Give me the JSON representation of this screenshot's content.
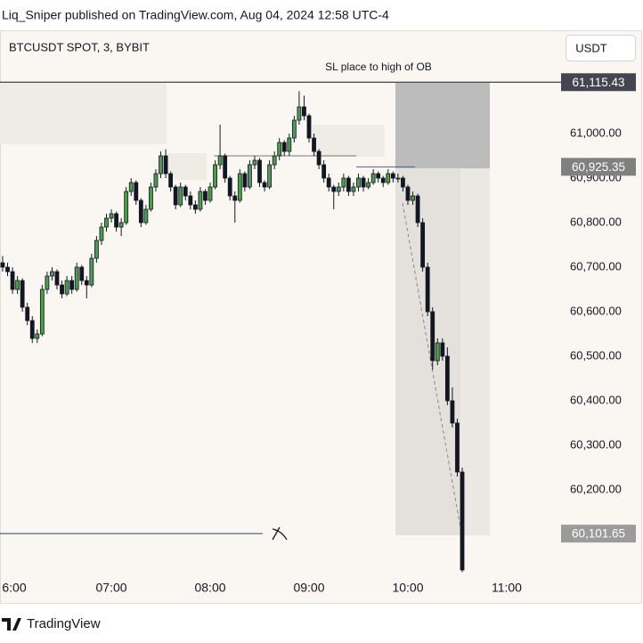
{
  "header": {
    "published": "Liq_Sniper published on TradingView.com, Aug 04, 2024 12:58 UTC-4"
  },
  "footer": {
    "brand": "TradingView"
  },
  "currency_button": "USDT",
  "chart_data": {
    "type": "candlestick",
    "title": "BTCUSDT SPOT, 3, BYBIT",
    "annotation": "SL place to high of OB",
    "up_color": "#4e9a4e",
    "down_color": "#131722",
    "xlim": [
      352.4,
      693
    ],
    "xticks": [
      {
        "value": 360,
        "label": "6:00"
      },
      {
        "value": 420,
        "label": "07:00"
      },
      {
        "value": 480,
        "label": "08:00"
      },
      {
        "value": 540,
        "label": "09:00"
      },
      {
        "value": 600,
        "label": "10:00"
      },
      {
        "value": 660,
        "label": "11:00"
      }
    ],
    "ylim": [
      60000,
      61230
    ],
    "yticks": [
      {
        "value": 60200,
        "label": "60,200.00"
      },
      {
        "value": 60300,
        "label": "60,300.00"
      },
      {
        "value": 60400,
        "label": "60,400.00"
      },
      {
        "value": 60500,
        "label": "60,500.00"
      },
      {
        "value": 60600,
        "label": "60,600.00"
      },
      {
        "value": 60700,
        "label": "60,700.00"
      },
      {
        "value": 60800,
        "label": "60,800.00"
      },
      {
        "value": 60900,
        "label": "60,900.00"
      },
      {
        "value": 61000,
        "label": "61,000.00"
      }
    ],
    "grid": false,
    "price_lines": [
      {
        "value": 61115.43,
        "label": "61,115.43",
        "color": "#131722",
        "box_color": "#434651"
      },
      {
        "value": 60925.35,
        "label": "60,925.35",
        "color": "#2962ff",
        "box_color": "#808080"
      },
      {
        "value": 60101.65,
        "label": "60,101.65",
        "color": "#1c3f8c",
        "box_color": "#9b9b9b"
      }
    ],
    "x": [
      354,
      357,
      360,
      363,
      366,
      369,
      372,
      375,
      378,
      381,
      384,
      387,
      390,
      393,
      396,
      399,
      402,
      405,
      408,
      411,
      414,
      417,
      420,
      423,
      426,
      429,
      432,
      435,
      438,
      441,
      444,
      447,
      450,
      453,
      456,
      459,
      462,
      465,
      468,
      471,
      474,
      477,
      480,
      483,
      486,
      489,
      492,
      495,
      498,
      501,
      504,
      507,
      510,
      513,
      516,
      519,
      522,
      525,
      528,
      531,
      534,
      537,
      540,
      543,
      546,
      549,
      552,
      555,
      558,
      561,
      564,
      567,
      570,
      573,
      576,
      579,
      582,
      585,
      588,
      591,
      594,
      597,
      600,
      603,
      606,
      609,
      612,
      615,
      618,
      621,
      624,
      627,
      630,
      633
    ],
    "series": [
      {
        "name": "BTCUSDT",
        "values": [
          [
            60710,
            60725,
            60690,
            60700
          ],
          [
            60700,
            60710,
            60680,
            60690
          ],
          [
            60690,
            60700,
            60640,
            60650
          ],
          [
            60650,
            60680,
            60640,
            60670
          ],
          [
            60670,
            60675,
            60600,
            60610
          ],
          [
            60610,
            60620,
            60570,
            60580
          ],
          [
            60580,
            60590,
            60530,
            60540
          ],
          [
            60540,
            60560,
            60530,
            60550
          ],
          [
            60550,
            60660,
            60545,
            60650
          ],
          [
            60650,
            60690,
            60640,
            60680
          ],
          [
            60680,
            60700,
            60670,
            60690
          ],
          [
            60690,
            60695,
            60650,
            60660
          ],
          [
            60660,
            60670,
            60630,
            60640
          ],
          [
            60640,
            60680,
            60635,
            60670
          ],
          [
            60670,
            60680,
            60640,
            60650
          ],
          [
            60650,
            60710,
            60645,
            60700
          ],
          [
            60700,
            60705,
            60660,
            60670
          ],
          [
            60670,
            60680,
            60630,
            60660
          ],
          [
            60660,
            60730,
            60655,
            60720
          ],
          [
            60720,
            60770,
            60710,
            60760
          ],
          [
            60760,
            60800,
            60750,
            60790
          ],
          [
            60790,
            60820,
            60780,
            60810
          ],
          [
            60810,
            60830,
            60800,
            60820
          ],
          [
            60820,
            60825,
            60780,
            60790
          ],
          [
            60790,
            60810,
            60770,
            60800
          ],
          [
            60800,
            60880,
            60795,
            60870
          ],
          [
            60870,
            60900,
            60860,
            60890
          ],
          [
            60890,
            60895,
            60840,
            60850
          ],
          [
            60850,
            60855,
            60790,
            60800
          ],
          [
            60800,
            60840,
            60795,
            60830
          ],
          [
            60830,
            60890,
            60825,
            60880
          ],
          [
            60880,
            60920,
            60870,
            60910
          ],
          [
            60910,
            60960,
            60900,
            60950
          ],
          [
            60950,
            60965,
            60900,
            60910
          ],
          [
            60910,
            60915,
            60870,
            60880
          ],
          [
            60880,
            60885,
            60830,
            60840
          ],
          [
            60840,
            60890,
            60835,
            60880
          ],
          [
            60880,
            60885,
            60850,
            60860
          ],
          [
            60860,
            60870,
            60830,
            60840
          ],
          [
            60840,
            60850,
            60820,
            60830
          ],
          [
            60830,
            60880,
            60825,
            60870
          ],
          [
            60870,
            60875,
            60840,
            60850
          ],
          [
            60850,
            60890,
            60845,
            60880
          ],
          [
            60880,
            60940,
            60875,
            60930
          ],
          [
            60930,
            61020,
            60920,
            60950
          ],
          [
            60950,
            60955,
            60890,
            60900
          ],
          [
            60900,
            60905,
            60850,
            60860
          ],
          [
            60860,
            60870,
            60800,
            60850
          ],
          [
            60850,
            60920,
            60845,
            60910
          ],
          [
            60910,
            60915,
            60870,
            60880
          ],
          [
            60880,
            60940,
            60875,
            60930
          ],
          [
            60930,
            60950,
            60920,
            60940
          ],
          [
            60940,
            60945,
            60880,
            60890
          ],
          [
            60890,
            60895,
            60870,
            60880
          ],
          [
            60880,
            60940,
            60875,
            60930
          ],
          [
            60930,
            60960,
            60920,
            60950
          ],
          [
            60950,
            60990,
            60940,
            60980
          ],
          [
            60980,
            60985,
            60950,
            60960
          ],
          [
            60960,
            61000,
            60950,
            60990
          ],
          [
            60990,
            61040,
            60980,
            61030
          ],
          [
            61030,
            61095,
            61020,
            61060
          ],
          [
            61060,
            61085,
            61030,
            61040
          ],
          [
            61040,
            61045,
            60980,
            60990
          ],
          [
            60990,
            61000,
            60950,
            60960
          ],
          [
            60960,
            60965,
            60920,
            60930
          ],
          [
            60930,
            60940,
            60890,
            60900
          ],
          [
            60900,
            60910,
            60870,
            60880
          ],
          [
            60880,
            60885,
            60830,
            60870
          ],
          [
            60870,
            60890,
            60860,
            60880
          ],
          [
            60880,
            60910,
            60870,
            60900
          ],
          [
            60900,
            60905,
            60860,
            60870
          ],
          [
            60870,
            60890,
            60860,
            60880
          ],
          [
            60880,
            60910,
            60870,
            60900
          ],
          [
            60900,
            60905,
            60870,
            60880
          ],
          [
            60880,
            60900,
            60875,
            60890
          ],
          [
            60890,
            60920,
            60885,
            60910
          ],
          [
            60910,
            60915,
            60890,
            60900
          ],
          [
            60900,
            60905,
            60880,
            60890
          ],
          [
            60890,
            60920,
            60885,
            60910
          ],
          [
            60910,
            60915,
            60890,
            60900
          ],
          [
            60900,
            60910,
            60890,
            60900
          ],
          [
            60900,
            60905,
            60870,
            60880
          ],
          [
            60880,
            60885,
            60840,
            60850
          ],
          [
            60850,
            60870,
            60840,
            60860
          ],
          [
            60860,
            60865,
            60790,
            60800
          ],
          [
            60800,
            60810,
            60690,
            60700
          ],
          [
            60700,
            60710,
            60590,
            60600
          ],
          [
            60600,
            60610,
            60470,
            60490
          ],
          [
            60490,
            60540,
            60480,
            60530
          ],
          [
            60530,
            60540,
            60490,
            60500
          ],
          [
            60500,
            60520,
            60390,
            60400
          ],
          [
            60400,
            60430,
            60340,
            60350
          ],
          [
            60350,
            60360,
            60230,
            60240
          ],
          [
            60240,
            60250,
            60015,
            60020
          ]
        ]
      }
    ]
  }
}
